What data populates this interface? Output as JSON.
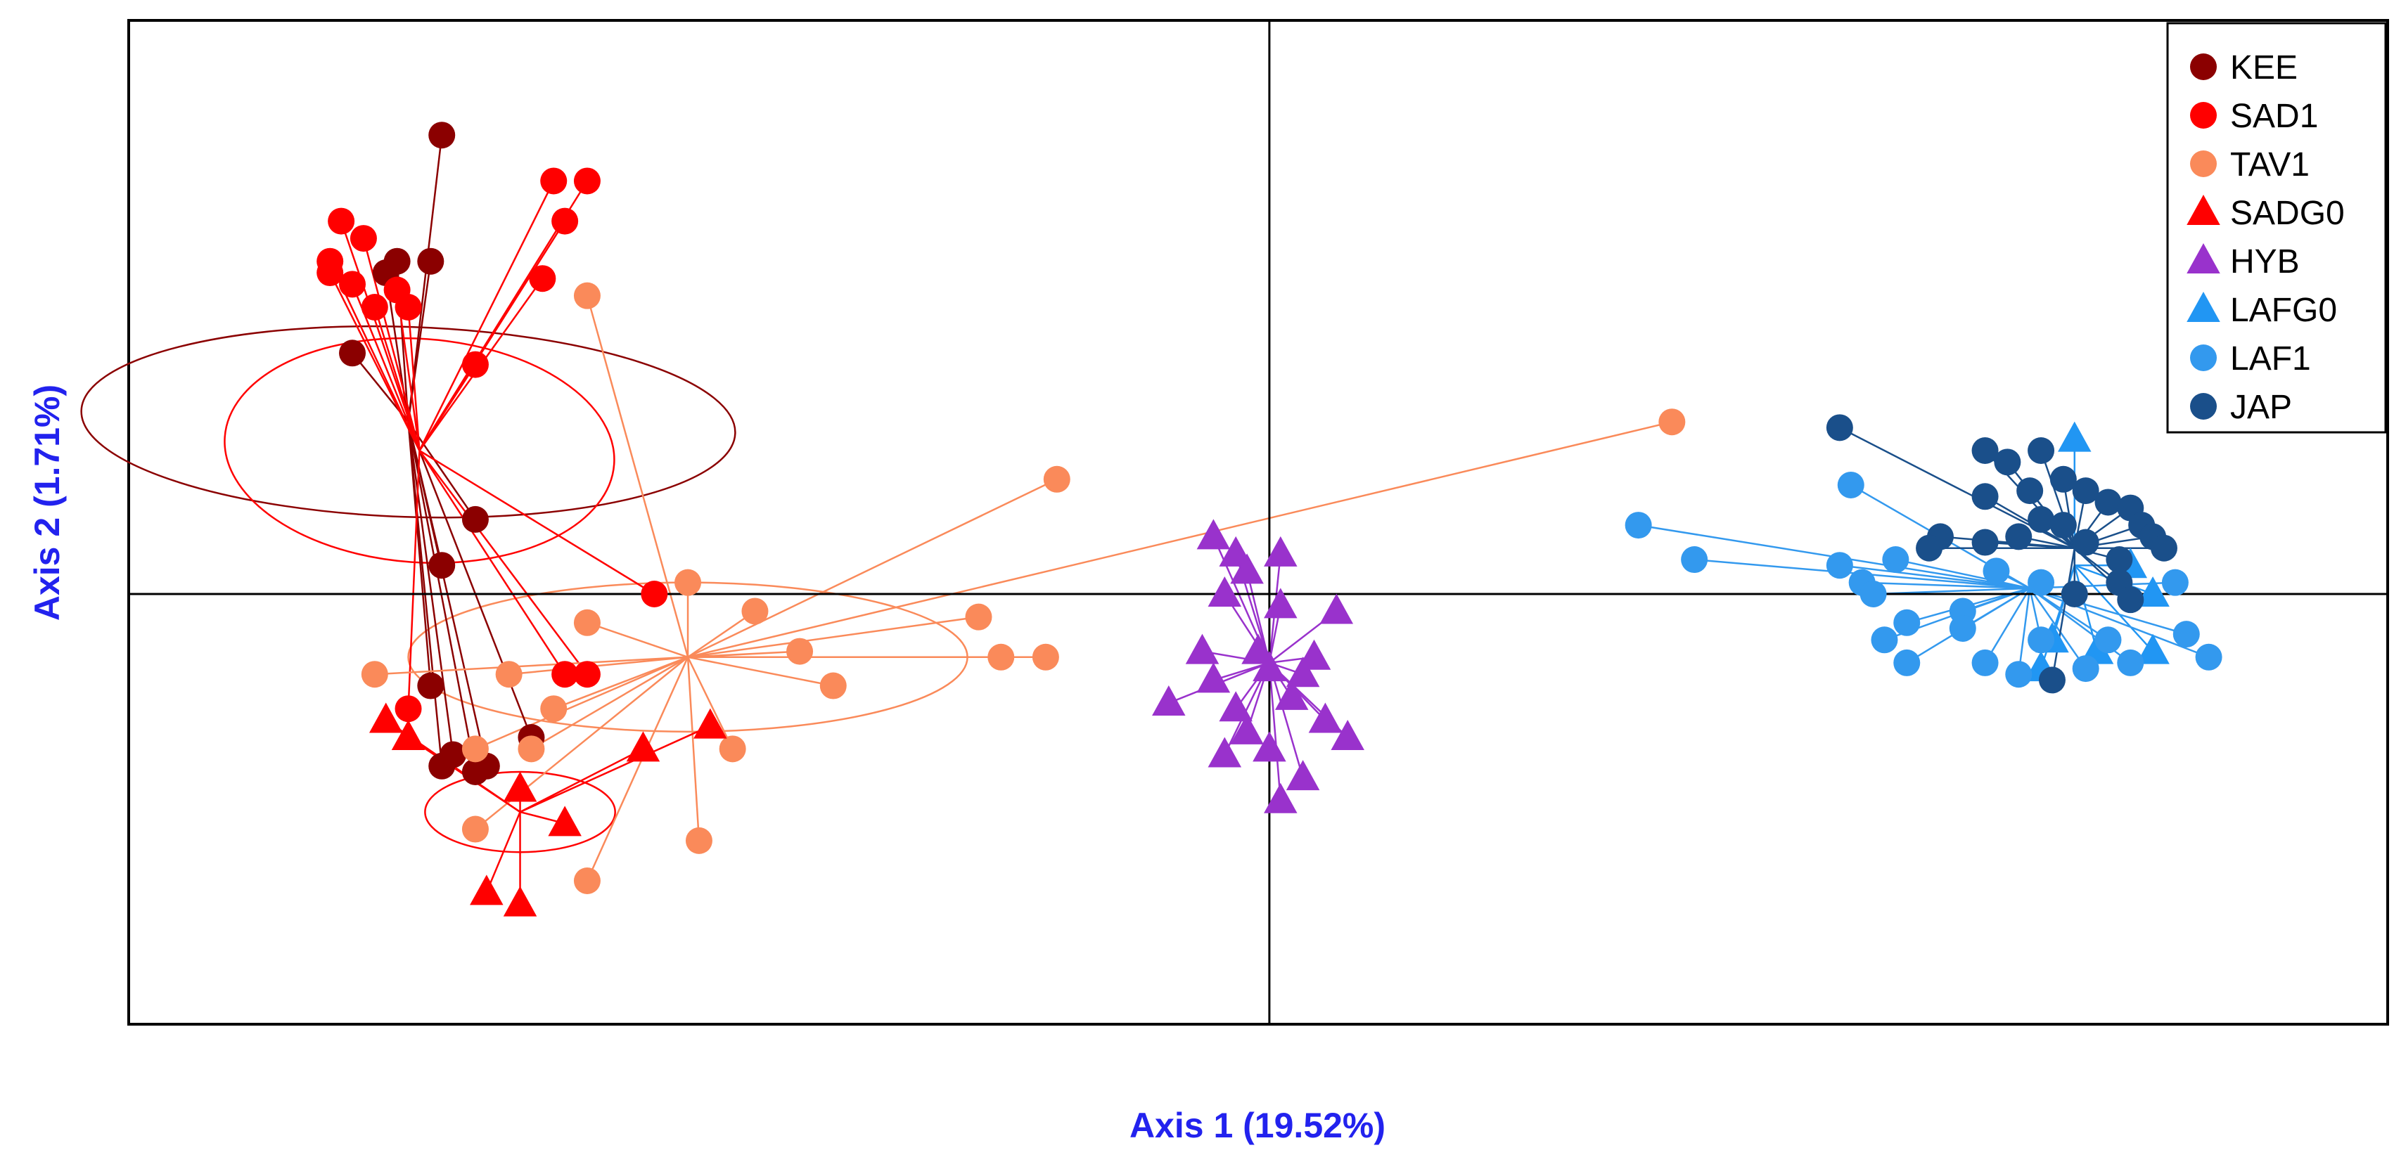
{
  "chart_data": {
    "type": "scatter",
    "title": "",
    "xlabel": "Axis 1 (19.52%)",
    "ylabel": "Axis 2 (1.71%)",
    "xlim": [
      -1.02,
      1.0
    ],
    "ylim": [
      -0.75,
      1.0
    ],
    "label_color": "#2222ee",
    "crosshair": {
      "x": 0,
      "y": 0
    },
    "legend": {
      "placement": "top-right"
    },
    "groups": [
      {
        "name": "KEE",
        "color": "#8b0000",
        "marker": "circle",
        "center": [
          -0.77,
          0.3
        ],
        "ellipse": {
          "rx": 0.085,
          "ry": 0.57,
          "angle": -88
        },
        "points": [
          [
            -0.74,
            0.8
          ],
          [
            -0.78,
            0.58
          ],
          [
            -0.82,
            0.42
          ],
          [
            -0.71,
            0.13
          ],
          [
            -0.74,
            0.05
          ],
          [
            -0.75,
            -0.16
          ],
          [
            -0.74,
            -0.3
          ],
          [
            -0.73,
            -0.28
          ],
          [
            -0.71,
            -0.31
          ],
          [
            -0.66,
            -0.25
          ],
          [
            -0.7,
            -0.3
          ],
          [
            -0.79,
            0.56
          ],
          [
            -0.75,
            0.58
          ]
        ]
      },
      {
        "name": "SAD1",
        "color": "#ff0000",
        "marker": "circle",
        "center": [
          -0.76,
          0.25
        ],
        "ellipse": {
          "rx": 0.1,
          "ry": 0.34,
          "angle": -86
        },
        "points": [
          [
            -0.83,
            0.65
          ],
          [
            -0.84,
            0.58
          ],
          [
            -0.81,
            0.62
          ],
          [
            -0.84,
            0.56
          ],
          [
            -0.82,
            0.54
          ],
          [
            -0.8,
            0.5
          ],
          [
            -0.78,
            0.53
          ],
          [
            -0.77,
            0.5
          ],
          [
            -0.64,
            0.72
          ],
          [
            -0.61,
            0.72
          ],
          [
            -0.63,
            0.65
          ],
          [
            -0.65,
            0.55
          ],
          [
            -0.71,
            0.4
          ],
          [
            -0.55,
            0.0
          ],
          [
            -0.61,
            -0.14
          ],
          [
            -0.63,
            -0.14
          ],
          [
            -0.77,
            -0.2
          ]
        ]
      },
      {
        "name": "TAV1",
        "color": "#fa8a5a",
        "marker": "circle",
        "center": [
          -0.52,
          -0.11
        ],
        "ellipse": {
          "rx": 0.25,
          "ry": 0.13,
          "angle": 0
        },
        "points": [
          [
            -0.61,
            0.52
          ],
          [
            -0.19,
            0.2
          ],
          [
            0.36,
            0.3
          ],
          [
            -0.52,
            0.02
          ],
          [
            -0.61,
            -0.05
          ],
          [
            -0.46,
            -0.03
          ],
          [
            -0.42,
            -0.1
          ],
          [
            -0.39,
            -0.16
          ],
          [
            -0.26,
            -0.04
          ],
          [
            -0.24,
            -0.11
          ],
          [
            -0.2,
            -0.11
          ],
          [
            -0.8,
            -0.14
          ],
          [
            -0.68,
            -0.14
          ],
          [
            -0.66,
            -0.27
          ],
          [
            -0.71,
            -0.27
          ],
          [
            -0.64,
            -0.2
          ],
          [
            -0.48,
            -0.27
          ],
          [
            -0.71,
            -0.41
          ],
          [
            -0.61,
            -0.5
          ],
          [
            -0.51,
            -0.43
          ]
        ]
      },
      {
        "name": "SADG0",
        "color": "#ff0000",
        "marker": "triangle",
        "center": [
          -0.67,
          -0.38
        ],
        "ellipse": {
          "rx": 0.085,
          "ry": 0.07,
          "angle": 0
        },
        "points": [
          [
            -0.67,
            -0.34
          ],
          [
            -0.63,
            -0.4
          ],
          [
            -0.56,
            -0.27
          ],
          [
            -0.5,
            -0.23
          ],
          [
            -0.7,
            -0.52
          ],
          [
            -0.67,
            -0.54
          ],
          [
            -0.79,
            -0.22
          ],
          [
            -0.77,
            -0.25
          ]
        ]
      },
      {
        "name": "HYB",
        "color": "#9932cc",
        "marker": "triangle",
        "center": [
          0.0,
          -0.12
        ],
        "points": [
          [
            -0.05,
            0.1
          ],
          [
            -0.03,
            0.07
          ],
          [
            -0.02,
            0.04
          ],
          [
            0.01,
            0.07
          ],
          [
            -0.04,
            0.0
          ],
          [
            0.01,
            -0.02
          ],
          [
            0.06,
            -0.03
          ],
          [
            -0.06,
            -0.1
          ],
          [
            -0.01,
            -0.1
          ],
          [
            0.04,
            -0.11
          ],
          [
            -0.09,
            -0.19
          ],
          [
            -0.03,
            -0.2
          ],
          [
            0.02,
            -0.18
          ],
          [
            0.05,
            -0.22
          ],
          [
            0.07,
            -0.25
          ],
          [
            0.0,
            -0.27
          ],
          [
            0.03,
            -0.32
          ],
          [
            -0.04,
            -0.28
          ],
          [
            0.01,
            -0.36
          ],
          [
            -0.05,
            -0.15
          ],
          [
            0.0,
            -0.13
          ],
          [
            0.03,
            -0.14
          ],
          [
            -0.02,
            -0.24
          ]
        ]
      },
      {
        "name": "LAFG0",
        "color": "#2196f3",
        "marker": "triangle",
        "center": [
          0.72,
          0.05
        ],
        "points": [
          [
            0.72,
            0.27
          ],
          [
            0.77,
            0.05
          ],
          [
            0.79,
            0.0
          ],
          [
            0.7,
            -0.08
          ],
          [
            0.69,
            -0.13
          ],
          [
            0.79,
            -0.1
          ],
          [
            0.74,
            -0.1
          ]
        ]
      },
      {
        "name": "LAF1",
        "color": "#3399ee",
        "marker": "circle",
        "center": [
          0.68,
          0.01
        ],
        "points": [
          [
            0.33,
            0.12
          ],
          [
            0.38,
            0.06
          ],
          [
            0.52,
            0.19
          ],
          [
            0.51,
            0.05
          ],
          [
            0.53,
            0.02
          ],
          [
            0.54,
            0.0
          ],
          [
            0.55,
            -0.08
          ],
          [
            0.57,
            -0.05
          ],
          [
            0.62,
            -0.03
          ],
          [
            0.62,
            -0.06
          ],
          [
            0.65,
            0.04
          ],
          [
            0.69,
            0.02
          ],
          [
            0.69,
            -0.08
          ],
          [
            0.73,
            -0.13
          ],
          [
            0.75,
            -0.08
          ],
          [
            0.77,
            -0.12
          ],
          [
            0.81,
            0.02
          ],
          [
            0.82,
            -0.07
          ],
          [
            0.84,
            -0.11
          ],
          [
            0.57,
            -0.12
          ],
          [
            0.64,
            -0.12
          ],
          [
            0.67,
            -0.14
          ],
          [
            0.56,
            0.06
          ]
        ]
      },
      {
        "name": "JAP",
        "color": "#1a4f8a",
        "marker": "circle",
        "center": [
          0.72,
          0.08
        ],
        "points": [
          [
            0.51,
            0.29
          ],
          [
            0.64,
            0.25
          ],
          [
            0.66,
            0.23
          ],
          [
            0.69,
            0.25
          ],
          [
            0.64,
            0.17
          ],
          [
            0.68,
            0.18
          ],
          [
            0.71,
            0.2
          ],
          [
            0.73,
            0.18
          ],
          [
            0.75,
            0.16
          ],
          [
            0.77,
            0.15
          ],
          [
            0.78,
            0.12
          ],
          [
            0.79,
            0.1
          ],
          [
            0.8,
            0.08
          ],
          [
            0.76,
            0.06
          ],
          [
            0.73,
            0.09
          ],
          [
            0.71,
            0.12
          ],
          [
            0.69,
            0.13
          ],
          [
            0.67,
            0.1
          ],
          [
            0.64,
            0.09
          ],
          [
            0.6,
            0.1
          ],
          [
            0.59,
            0.08
          ],
          [
            0.72,
            0.0
          ],
          [
            0.76,
            0.02
          ],
          [
            0.7,
            -0.15
          ],
          [
            0.77,
            -0.01
          ]
        ]
      }
    ]
  }
}
